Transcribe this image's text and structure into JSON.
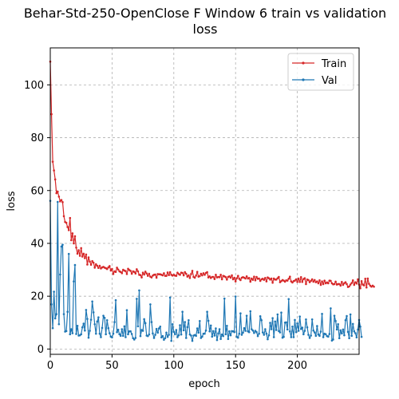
{
  "chart_data": {
    "type": "line",
    "title_line1": "Behar-Std-250-OpenClose F Window 6 train vs validation",
    "title_line2": "loss",
    "xlabel": "epoch",
    "ylabel": "loss",
    "xlim": [
      0,
      250
    ],
    "ylim": [
      -2,
      114
    ],
    "xticks": [
      0,
      50,
      100,
      150,
      200
    ],
    "yticks": [
      0,
      20,
      40,
      60,
      80,
      100
    ],
    "grid": true,
    "legend_position": "upper right",
    "series": [
      {
        "name": "Train",
        "color": "#d62728",
        "values": [
          108.8,
          88.9,
          70.9,
          67.6,
          64.2,
          59.0,
          59.6,
          57.7,
          55.9,
          56.4,
          55.6,
          50.3,
          48.1,
          47.8,
          46.2,
          45.0,
          49.6,
          41.2,
          43.8,
          40.0,
          42.7,
          38.4,
          36.1,
          37.4,
          35.3,
          38.2,
          35.0,
          36.1,
          34.4,
          35.8,
          32.0,
          34.7,
          33.1,
          31.9,
          33.3,
          32.7,
          30.8,
          32.1,
          31.5,
          30.7,
          31.5,
          30.5,
          30.9,
          31.1,
          30.8,
          30.6,
          30.3,
          30.9,
          31.4,
          29.7,
          30.3,
          28.4,
          29.4,
          29.2,
          30.8,
          30.1,
          29.4,
          29.2,
          28.7,
          30.0,
          29.7,
          29.5,
          28.4,
          30.4,
          29.9,
          29.6,
          28.5,
          29.4,
          29.2,
          28.6,
          30.2,
          29.4,
          28.1,
          28.0,
          27.1,
          28.9,
          28.2,
          29.3,
          28.6,
          27.7,
          28.5,
          27.4,
          27.1,
          27.8,
          28.1,
          28.2,
          27.0,
          28.4,
          28.3,
          28.3,
          28.1,
          27.9,
          28.7,
          27.7,
          27.7,
          29.0,
          28.0,
          29.1,
          28.1,
          27.8,
          28.1,
          27.8,
          27.7,
          28.9,
          28.4,
          28.1,
          28.9,
          28.8,
          27.9,
          29.1,
          28.5,
          27.4,
          27.9,
          26.9,
          28.4,
          29.6,
          27.3,
          27.0,
          27.8,
          29.2,
          27.4,
          27.6,
          28.5,
          27.9,
          28.7,
          28.1,
          28.8,
          29.1,
          27.1,
          27.5,
          26.9,
          27.3,
          27.3,
          26.5,
          28.1,
          27.1,
          27.3,
          27.2,
          28.1,
          26.4,
          27.7,
          27.5,
          27.2,
          26.3,
          27.3,
          27.5,
          27.0,
          27.9,
          26.4,
          27.0,
          25.6,
          26.8,
          27.7,
          26.6,
          26.1,
          27.0,
          27.2,
          27.0,
          26.7,
          27.5,
          26.7,
          26.9,
          25.5,
          26.7,
          26.2,
          27.4,
          26.0,
          27.3,
          26.6,
          26.7,
          25.8,
          26.4,
          26.6,
          26.2,
          26.9,
          25.6,
          27.1,
          26.8,
          26.3,
          26.7,
          25.1,
          26.7,
          26.3,
          26.3,
          26.8,
          27.3,
          25.3,
          25.7,
          26.1,
          25.9,
          25.5,
          26.0,
          25.9,
          26.6,
          27.4,
          25.6,
          25.2,
          25.7,
          25.9,
          26.4,
          25.4,
          26.7,
          25.4,
          27.2,
          25.4,
          26.5,
          26.8,
          24.6,
          26.3,
          26.1,
          25.3,
          25.8,
          26.4,
          25.5,
          26.1,
          25.3,
          25.6,
          24.9,
          26.0,
          24.3,
          25.6,
          24.6,
          25.9,
          24.9,
          25.2,
          24.9,
          25.9,
          25.8,
          24.9,
          24.5,
          24.6,
          25.5,
          24.4,
          24.6,
          24.6,
          24.0,
          25.4,
          24.3,
          24.9,
          25.3,
          24.6,
          23.5,
          23.7,
          24.4,
          25.0,
          26.0,
          24.3,
          25.3,
          24.8,
          26.4,
          24.4,
          23.0,
          25.7,
          24.4,
          24.1,
          26.6,
          23.3,
          26.7,
          24.7,
          24.0,
          23.6,
          24.0,
          23.6
        ]
      },
      {
        "name": "Val",
        "color": "#1f77b4",
        "values": [
          56.1,
          16.9,
          7.9,
          21.7,
          11.6,
          13.2,
          55.7,
          9.4,
          28.2,
          38.8,
          39.5,
          13.2,
          6.6,
          6.8,
          14.1,
          36.0,
          5.6,
          7.5,
          6.0,
          25.6,
          31.8,
          5.7,
          8.8,
          5.1,
          5.2,
          5.6,
          8.2,
          9.6,
          7.0,
          14.8,
          11.4,
          4.3,
          6.9,
          11.1,
          18.0,
          13.9,
          9.4,
          5.8,
          10.4,
          12.0,
          5.8,
          4.5,
          8.0,
          12.6,
          11.8,
          5.6,
          10.9,
          7.9,
          6.0,
          4.7,
          4.4,
          5.8,
          10.2,
          18.5,
          6.4,
          7.3,
          5.6,
          5.0,
          7.5,
          5.0,
          8.6,
          4.5,
          14.7,
          5.6,
          6.7,
          6.7,
          5.7,
          4.1,
          3.6,
          4.2,
          19.0,
          8.6,
          22.2,
          4.9,
          7.2,
          6.9,
          11.3,
          9.8,
          5.1,
          4.9,
          5.5,
          16.9,
          10.2,
          5.9,
          4.2,
          5.4,
          7.6,
          6.2,
          7.8,
          8.5,
          4.4,
          4.9,
          3.5,
          4.1,
          6.2,
          4.6,
          5.4,
          19.5,
          3.1,
          9.4,
          6.5,
          5.6,
          7.2,
          4.5,
          5.2,
          9.0,
          5.5,
          14.1,
          7.1,
          10.2,
          4.2,
          8.3,
          10.9,
          5.5,
          5.1,
          3.1,
          5.1,
          5.3,
          5.0,
          7.8,
          6.2,
          10.6,
          4.2,
          4.7,
          5.8,
          5.8,
          7.0,
          14.1,
          10.7,
          6.7,
          8.9,
          4.7,
          6.8,
          5.1,
          7.8,
          3.4,
          5.9,
          7.5,
          3.8,
          5.5,
          4.9,
          19.1,
          5.6,
          8.8,
          3.8,
          6.7,
          5.2,
          6.8,
          6.7,
          6.4,
          19.9,
          4.6,
          4.3,
          5.8,
          13.5,
          5.4,
          6.2,
          7.9,
          6.9,
          12.6,
          6.7,
          6.4,
          14.3,
          7.5,
          7.0,
          6.1,
          6.9,
          6.4,
          4.9,
          5.8,
          12.4,
          10.9,
          6.3,
          5.4,
          7.5,
          5.8,
          3.7,
          5.2,
          9.9,
          7.5,
          11.7,
          4.5,
          10.4,
          7.2,
          13.1,
          6.8,
          6.3,
          13.8,
          4.3,
          4.6,
          10.0,
          10.1,
          7.4,
          18.9,
          6.7,
          4.5,
          8.5,
          4.5,
          11.0,
          6.4,
          9.7,
          6.9,
          12.3,
          7.6,
          8.1,
          5.6,
          6.9,
          11.2,
          8.2,
          5.4,
          4.2,
          5.1,
          11.2,
          7.0,
          6.3,
          5.0,
          8.7,
          5.5,
          5.0,
          6.6,
          13.3,
          4.5,
          5.8,
          5.6,
          4.9,
          4.7,
          5.7,
          15.4,
          3.2,
          3.6,
          12.6,
          10.6,
          7.4,
          9.4,
          4.1,
          7.1,
          5.9,
          7.4,
          5.2,
          10.9,
          12.5,
          6.5,
          4.1,
          13.1,
          5.0,
          9.5,
          6.7,
          6.0,
          4.4,
          7.4,
          11.0,
          8.5,
          4.6
        ]
      }
    ]
  }
}
